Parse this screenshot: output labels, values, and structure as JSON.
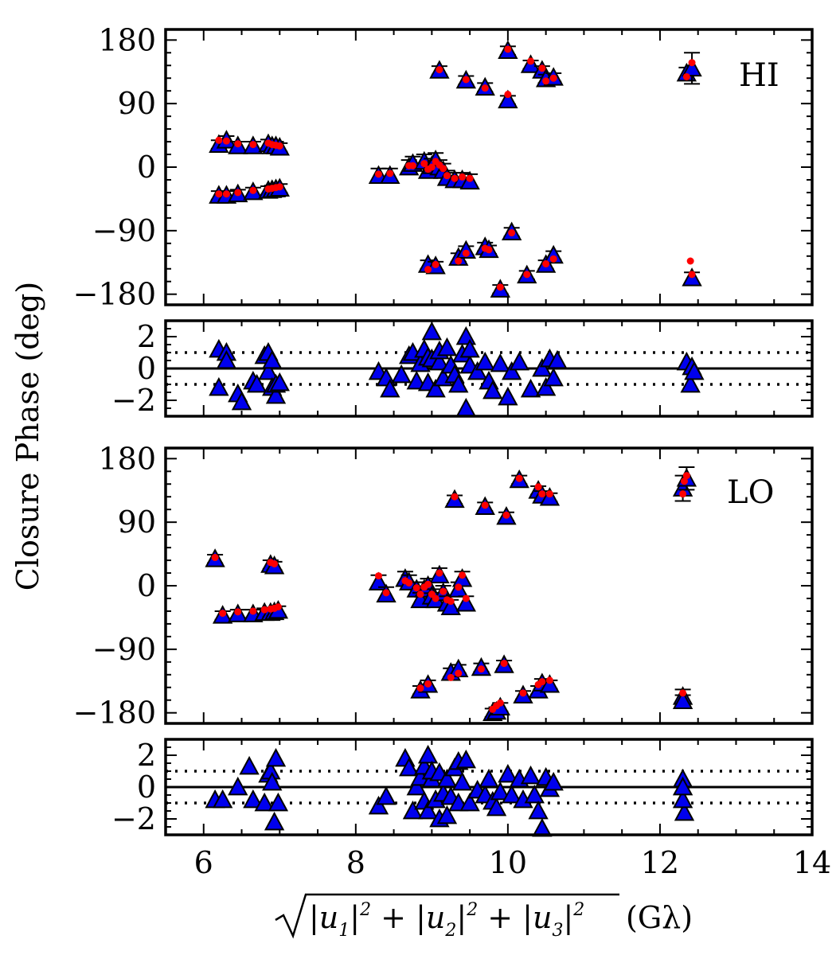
{
  "chart_data": {
    "type": "scatter",
    "xlabel": "(Gλ)",
    "xlabel_radicand": {
      "parts": [
        "|u",
        "1",
        "|",
        "2",
        " + |u",
        "2",
        "|",
        "2",
        " + |u",
        "3",
        "|",
        "2"
      ]
    },
    "ylabel": "Closure Phase (deg)",
    "xlim": [
      5.5,
      14
    ],
    "xticks": [
      6,
      8,
      10,
      12,
      14
    ],
    "xtick_labels": [
      "6",
      "8",
      "10",
      "12",
      "14"
    ],
    "panels": [
      {
        "id": "hi-main",
        "legend": "HI",
        "legend_position": "top-right",
        "ylim": [
          -195,
          195
        ],
        "yticks": [
          180,
          90,
          0,
          -90,
          -180
        ],
        "ytick_labels": [
          "180",
          "90",
          "0",
          "−90",
          "−180"
        ],
        "zero_line": false,
        "dotted_lines": [],
        "series": [
          {
            "name": "data",
            "marker": "triangle",
            "color": "#0000ee",
            "x": [
              6.2,
              6.3,
              6.45,
              6.65,
              6.85,
              6.9,
              6.95,
              7.0,
              6.2,
              6.3,
              6.45,
              6.65,
              6.85,
              6.9,
              6.95,
              7.0,
              8.3,
              8.45,
              8.7,
              8.75,
              8.9,
              8.95,
              9.0,
              9.05,
              9.1,
              9.15,
              9.2,
              9.3,
              9.4,
              9.5,
              9.1,
              9.45,
              9.7,
              10.0,
              10.0,
              10.3,
              10.45,
              10.5,
              10.6,
              8.95,
              9.05,
              9.35,
              9.45,
              9.7,
              9.75,
              10.05,
              10.25,
              10.5,
              10.6,
              9.9,
              12.35,
              12.42,
              12.42
            ],
            "y": [
              32,
              38,
              30,
              30,
              33,
              30,
              30,
              28,
              -40,
              -40,
              -38,
              -35,
              -33,
              -32,
              -31,
              -30,
              -12,
              -12,
              0,
              5,
              8,
              -5,
              2,
              10,
              0,
              -5,
              -15,
              -18,
              -18,
              -20,
              137,
              123,
              113,
              165,
              95,
              145,
              137,
              125,
              127,
              -138,
              -140,
              -128,
              -118,
              -113,
              -117,
              -92,
              -153,
              -138,
              -125,
              -173,
              133,
              140,
              -157
            ],
            "yerr": [
              6,
              6,
              6,
              6,
              6,
              6,
              6,
              6,
              6,
              6,
              6,
              6,
              6,
              6,
              6,
              6,
              10,
              10,
              10,
              10,
              10,
              10,
              10,
              10,
              10,
              10,
              10,
              10,
              10,
              10,
              6,
              6,
              6,
              6,
              6,
              6,
              6,
              6,
              6,
              6,
              6,
              6,
              6,
              6,
              6,
              6,
              6,
              6,
              6,
              6,
              8,
              22,
              8
            ]
          },
          {
            "name": "model",
            "marker": "dot",
            "color": "#ff0000",
            "x": [
              6.2,
              6.3,
              6.45,
              6.65,
              6.85,
              6.9,
              6.95,
              7.0,
              6.2,
              6.3,
              6.45,
              6.65,
              6.85,
              6.9,
              6.95,
              7.0,
              8.3,
              8.45,
              8.7,
              8.75,
              8.9,
              8.95,
              9.0,
              9.05,
              9.1,
              9.15,
              9.2,
              9.3,
              9.4,
              9.5,
              9.1,
              9.45,
              9.7,
              10.0,
              10.0,
              10.3,
              10.45,
              10.5,
              10.6,
              8.95,
              9.05,
              9.35,
              9.45,
              9.7,
              9.75,
              10.05,
              10.25,
              10.5,
              10.6,
              9.9,
              12.35,
              12.42,
              12.42,
              12.4
            ],
            "y": [
              38,
              37,
              33,
              32,
              34,
              32,
              31,
              30,
              -38,
              -38,
              -36,
              -33,
              -31,
              -30,
              -29,
              -28,
              -10,
              -9,
              2,
              2,
              5,
              -3,
              0,
              8,
              3,
              -2,
              -12,
              -16,
              -14,
              -16,
              138,
              124,
              112,
              167,
              103,
              150,
              140,
              122,
              126,
              -145,
              -138,
              -133,
              -122,
              -115,
              -117,
              -93,
              -152,
              -137,
              -130,
              -170,
              128,
              148,
              -152,
              -133
            ]
          }
        ]
      },
      {
        "id": "hi-resid",
        "ylim": [
          -3,
          3
        ],
        "yticks": [
          2,
          0,
          -2
        ],
        "ytick_labels": [
          "2",
          "0",
          "−2"
        ],
        "zero_line": true,
        "dotted_lines": [
          1,
          -1
        ],
        "series": [
          {
            "name": "residual",
            "marker": "triangle",
            "color": "#0000ee",
            "x": [
              6.2,
              6.2,
              6.3,
              6.3,
              6.45,
              6.5,
              6.65,
              6.7,
              6.8,
              6.85,
              6.85,
              6.9,
              6.9,
              6.95,
              6.95,
              7.0,
              8.3,
              8.4,
              8.45,
              8.6,
              8.7,
              8.75,
              8.8,
              8.85,
              8.9,
              8.95,
              8.95,
              9.0,
              9.0,
              9.05,
              9.1,
              9.1,
              9.15,
              9.2,
              9.25,
              9.3,
              9.35,
              9.4,
              9.45,
              9.45,
              9.5,
              9.5,
              9.6,
              9.7,
              9.75,
              9.8,
              9.9,
              10.0,
              10.05,
              10.15,
              10.3,
              10.45,
              10.5,
              10.55,
              10.6,
              10.65,
              12.35,
              12.4,
              12.42,
              12.45
            ],
            "y": [
              1.2,
              -1.2,
              1.0,
              0.5,
              -1.6,
              -2.1,
              -0.8,
              -1.0,
              0.8,
              1.0,
              -0.2,
              0.5,
              -1.2,
              -1.7,
              -1.0,
              -0.9,
              -0.2,
              -0.6,
              -1.3,
              -0.4,
              0.8,
              1.0,
              -0.8,
              0.3,
              1.2,
              0.7,
              -0.9,
              2.3,
              0.6,
              -1.3,
              0.4,
              1.1,
              -0.6,
              1.3,
              0.2,
              -0.4,
              -1.0,
              0.9,
              2.0,
              -2.5,
              0.2,
              1.2,
              -0.2,
              0.4,
              -0.8,
              -1.4,
              0.3,
              -1.8,
              -0.2,
              0.4,
              -1.3,
              0.0,
              -1.2,
              0.6,
              -0.6,
              0.5,
              0.4,
              -1.0,
              0.1,
              -0.2
            ]
          }
        ]
      },
      {
        "id": "lo-main",
        "legend": "LO",
        "legend_position": "top-right",
        "ylim": [
          -195,
          195
        ],
        "yticks": [
          180,
          90,
          0,
          -90,
          -180
        ],
        "ytick_labels": [
          "180",
          "90",
          "0",
          "−90",
          "−180"
        ],
        "zero_line": false,
        "dotted_lines": [],
        "series": [
          {
            "name": "data",
            "marker": "triangle",
            "color": "#0000ee",
            "x": [
              6.15,
              6.88,
              6.93,
              6.25,
              6.45,
              6.65,
              6.8,
              6.88,
              6.93,
              6.98,
              8.3,
              8.4,
              8.65,
              8.7,
              8.8,
              8.85,
              8.9,
              8.95,
              9.0,
              9.05,
              9.1,
              9.15,
              9.2,
              9.25,
              9.35,
              9.4,
              9.45,
              9.3,
              9.7,
              9.98,
              10.15,
              10.4,
              10.45,
              10.55,
              8.85,
              8.95,
              9.25,
              9.35,
              9.65,
              9.95,
              9.8,
              9.85,
              9.9,
              10.2,
              10.4,
              10.45,
              10.55,
              12.3,
              12.35,
              12.3,
              12.3
            ],
            "y": [
              38,
              30,
              28,
              -42,
              -40,
              -40,
              -38,
              -38,
              -37,
              -35,
              5,
              -12,
              10,
              5,
              -5,
              -20,
              -5,
              0,
              -15,
              -20,
              15,
              -10,
              -25,
              -30,
              -5,
              10,
              -25,
              122,
              112,
              98,
              150,
              135,
              128,
              125,
              -148,
              -140,
              -123,
              -118,
              -116,
              -112,
              -180,
              -178,
              -172,
              -155,
              -148,
              -138,
              -140,
              138,
              152,
              -157,
              -163
            ],
            "yerr": [
              6,
              6,
              6,
              6,
              6,
              6,
              6,
              6,
              6,
              6,
              10,
              10,
              10,
              10,
              10,
              10,
              10,
              10,
              10,
              10,
              10,
              10,
              10,
              10,
              10,
              10,
              10,
              6,
              6,
              6,
              6,
              6,
              6,
              6,
              6,
              6,
              6,
              6,
              6,
              6,
              6,
              6,
              6,
              6,
              6,
              6,
              6,
              18,
              16,
              10,
              8
            ]
          },
          {
            "name": "model",
            "marker": "dot",
            "color": "#ff0000",
            "x": [
              6.15,
              6.88,
              6.93,
              6.25,
              6.45,
              6.65,
              6.8,
              6.88,
              6.93,
              6.98,
              8.3,
              8.4,
              8.65,
              8.7,
              8.8,
              8.85,
              8.9,
              8.95,
              9.0,
              9.05,
              9.1,
              9.15,
              9.2,
              9.25,
              9.35,
              9.4,
              9.45,
              9.3,
              9.7,
              9.98,
              10.15,
              10.4,
              10.45,
              10.55,
              8.85,
              8.95,
              9.25,
              9.35,
              9.65,
              9.95,
              9.8,
              9.85,
              9.9,
              10.2,
              10.4,
              10.45,
              10.55,
              12.3,
              12.35,
              12.32,
              12.3
            ],
            "y": [
              40,
              33,
              31,
              -39,
              -37,
              -36,
              -34,
              -33,
              -32,
              -30,
              14,
              -10,
              7,
              4,
              -3,
              -12,
              -2,
              2,
              -12,
              -18,
              18,
              -8,
              -20,
              -22,
              -2,
              15,
              -18,
              126,
              114,
              100,
              152,
              140,
              130,
              130,
              -145,
              -139,
              -130,
              -124,
              -118,
              -110,
              -175,
              -170,
              -166,
              -152,
              -140,
              -136,
              -134,
              130,
              156,
              148,
              -152
            ]
          }
        ]
      },
      {
        "id": "lo-resid",
        "ylim": [
          -3,
          3
        ],
        "yticks": [
          2,
          0,
          -2
        ],
        "ytick_labels": [
          "2",
          "0",
          "−2"
        ],
        "zero_line": true,
        "dotted_lines": [
          1,
          -1
        ],
        "series": [
          {
            "name": "residual",
            "marker": "triangle",
            "color": "#0000ee",
            "x": [
              6.15,
              6.25,
              6.45,
              6.6,
              6.65,
              6.8,
              6.85,
              6.88,
              6.9,
              6.93,
              6.95,
              6.98,
              8.3,
              8.4,
              8.65,
              8.7,
              8.75,
              8.8,
              8.85,
              8.9,
              8.9,
              8.95,
              8.95,
              9.0,
              9.0,
              9.05,
              9.1,
              9.1,
              9.15,
              9.2,
              9.2,
              9.25,
              9.3,
              9.35,
              9.35,
              9.4,
              9.45,
              9.5,
              9.6,
              9.7,
              9.75,
              9.8,
              9.85,
              9.9,
              10.0,
              10.05,
              10.15,
              10.2,
              10.3,
              10.35,
              10.4,
              10.45,
              10.5,
              10.55,
              10.6,
              12.3,
              12.32,
              12.3,
              12.3
            ],
            "y": [
              -0.8,
              -0.8,
              0.0,
              1.3,
              -0.8,
              -1.0,
              0.8,
              1.0,
              0.3,
              -2.2,
              1.8,
              -1.0,
              -1.2,
              -0.6,
              1.8,
              1.2,
              -1.5,
              0.0,
              0.6,
              1.3,
              -0.9,
              2.0,
              -1.5,
              0.5,
              1.0,
              -0.8,
              0.9,
              -2.0,
              -0.4,
              0.5,
              -1.8,
              -0.6,
              1.2,
              -1.0,
              1.6,
              0.3,
              1.7,
              -1.0,
              -0.2,
              -0.5,
              0.5,
              -0.9,
              -1.3,
              -0.3,
              0.8,
              -0.5,
              0.5,
              -0.8,
              0.7,
              -0.5,
              -1.5,
              -2.6,
              0.6,
              -0.1,
              0.3,
              0.5,
              -1.6,
              -0.8,
              0.0
            ]
          }
        ]
      }
    ]
  }
}
